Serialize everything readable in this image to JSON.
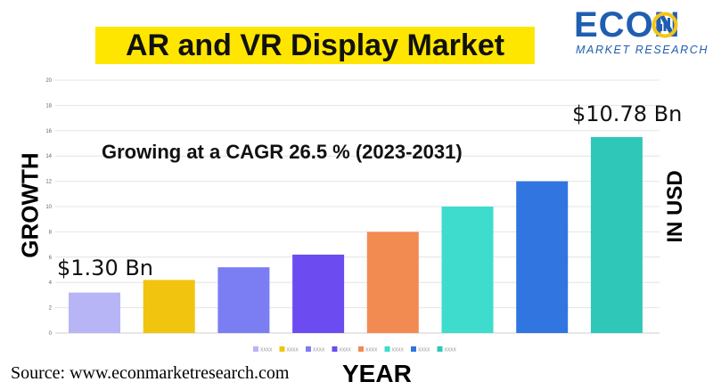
{
  "title": "AR and VR Display Market",
  "logo": {
    "word": "ECON",
    "tagline": "MARKET RESEARCH",
    "colors": {
      "brand": "#1f5eb0",
      "accent": "#f5c518"
    }
  },
  "ylabel_left": "GROWTH",
  "ylabel_right": "IN USD",
  "xlabel": "YEAR",
  "source": "Source: www.econmarketresearch.com",
  "chart_data": {
    "type": "bar",
    "subtitle": "Growing at a CAGR 26.5 % (2023-2031)",
    "categories": [
      "XXXX",
      "XXXX",
      "XXXX",
      "XXXX",
      "XXXX",
      "XXXX",
      "XXXX",
      "XXXX"
    ],
    "values": [
      3.2,
      4.2,
      5.2,
      6.2,
      8.0,
      10.0,
      12.0,
      15.5
    ],
    "colors": [
      "#b7b5f6",
      "#f1c40f",
      "#7b7df3",
      "#6c4cf0",
      "#f28b52",
      "#3ddccd",
      "#3075e0",
      "#2fc7b8"
    ],
    "ylim": [
      0,
      20
    ],
    "yticks": [
      "0",
      "2",
      "4",
      "6",
      "8",
      "10",
      "12",
      "14",
      "16",
      "18",
      "20"
    ],
    "grid": true,
    "legend": "bottom",
    "annotations": [
      "$1.30 Bn",
      "$10.78 Bn"
    ]
  }
}
